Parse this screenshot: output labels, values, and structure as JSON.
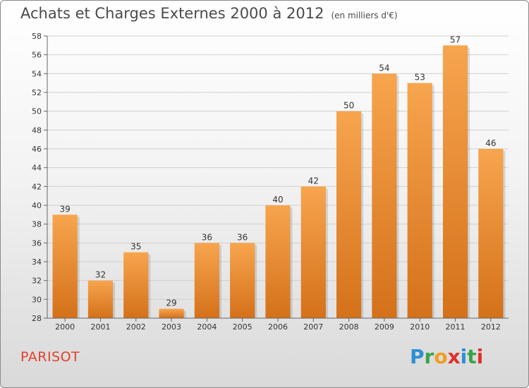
{
  "header": {
    "title": "Achats et Charges Externes 2000 à 2012",
    "unit": "(en milliers d'€)"
  },
  "footer": {
    "place": "PARISOT",
    "logo_letters": [
      "P",
      "r",
      "o",
      "x",
      "i",
      "t",
      "i"
    ],
    "logo_colors": [
      "#2d8fd5",
      "#3aa34a",
      "#f0a020",
      "#e03030",
      "#2d8fd5",
      "#3aa34a",
      "#e03030"
    ]
  },
  "chart_data": {
    "type": "bar",
    "title": "Achats et Charges Externes 2000 à 2012",
    "subtitle": "(en milliers d'€)",
    "categories": [
      "2000",
      "2001",
      "2002",
      "2003",
      "2004",
      "2005",
      "2006",
      "2007",
      "2008",
      "2009",
      "2010",
      "2011",
      "2012"
    ],
    "values": [
      39,
      32,
      35,
      29,
      36,
      36,
      40,
      42,
      50,
      54,
      53,
      57,
      46
    ],
    "ylim": [
      28,
      58
    ],
    "yticks": [
      28,
      30,
      32,
      34,
      36,
      38,
      40,
      42,
      44,
      46,
      48,
      50,
      52,
      54,
      56,
      58
    ],
    "grid": true,
    "bar_color_light": "#f7a54e",
    "bar_color_dark": "#d4711a",
    "xlabel": "",
    "ylabel": ""
  }
}
